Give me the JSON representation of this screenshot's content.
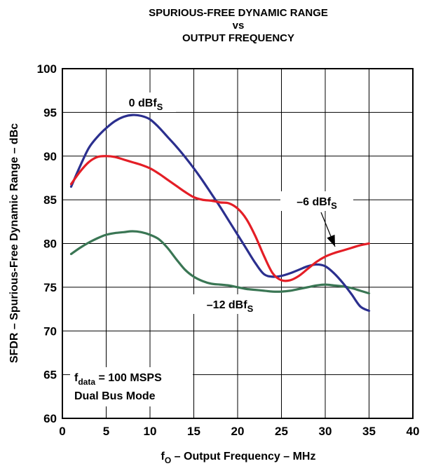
{
  "chart_data": {
    "type": "line",
    "title_lines": [
      "SPURIOUS-FREE DYNAMIC RANGE",
      "vs",
      "OUTPUT FREQUENCY"
    ],
    "xlabel": {
      "main": "f",
      "sub": "O",
      "rest": " – Output Frequency – MHz"
    },
    "ylabel": "SFDR – Spurious-Free Dynamic Range – dBc",
    "xlim": [
      0,
      40
    ],
    "ylim": [
      60,
      100
    ],
    "xticks": [
      0,
      5,
      10,
      15,
      20,
      25,
      30,
      35,
      40
    ],
    "yticks": [
      60,
      65,
      70,
      75,
      80,
      85,
      90,
      95,
      100
    ],
    "grid": true,
    "series": [
      {
        "name": "0 dBfS",
        "label": {
          "main": "0 dBf",
          "sub": "S"
        },
        "color": "#2b2f8e",
        "x": [
          1,
          2,
          3,
          4,
          5,
          6,
          7,
          8,
          9,
          10,
          11,
          12,
          13,
          14,
          15,
          16,
          17,
          18,
          19,
          20,
          21,
          22,
          23,
          24,
          25,
          26,
          27,
          28,
          29,
          30,
          31,
          32,
          33,
          34,
          35
        ],
        "y": [
          86.5,
          88.8,
          90.9,
          92.2,
          93.2,
          94.0,
          94.5,
          94.7,
          94.6,
          94.2,
          93.3,
          92.2,
          91.1,
          89.9,
          88.6,
          87.2,
          85.7,
          84.2,
          82.6,
          81.0,
          79.4,
          77.8,
          76.5,
          76.2,
          76.3,
          76.6,
          77.0,
          77.4,
          77.6,
          77.4,
          76.6,
          75.5,
          74.2,
          72.8,
          72.3
        ]
      },
      {
        "name": "–6 dBfS",
        "label": {
          "main": "–6 dBf",
          "sub": "S"
        },
        "color": "#e41e26",
        "x": [
          1,
          2,
          3,
          4,
          5,
          6,
          7,
          8,
          9,
          10,
          11,
          12,
          13,
          14,
          15,
          16,
          17,
          18,
          19,
          20,
          21,
          22,
          23,
          24,
          25,
          26,
          27,
          28,
          29,
          30,
          31,
          32,
          33,
          34,
          35
        ],
        "y": [
          86.8,
          88.2,
          89.3,
          89.9,
          90.0,
          89.9,
          89.6,
          89.3,
          89.0,
          88.6,
          88.0,
          87.3,
          86.6,
          85.9,
          85.3,
          85.0,
          84.9,
          84.7,
          84.6,
          84.0,
          82.8,
          80.9,
          78.6,
          76.6,
          75.8,
          75.8,
          76.3,
          77.1,
          77.9,
          78.5,
          78.9,
          79.2,
          79.5,
          79.8,
          80.0
        ]
      },
      {
        "name": "–12 dBfS",
        "label": {
          "main": "–12 dBf",
          "sub": "S"
        },
        "color": "#3a7654",
        "x": [
          1,
          2,
          3,
          4,
          5,
          6,
          7,
          8,
          9,
          10,
          11,
          12,
          13,
          14,
          15,
          16,
          17,
          18,
          19,
          20,
          21,
          22,
          23,
          24,
          25,
          26,
          27,
          28,
          29,
          30,
          31,
          32,
          33,
          34,
          35
        ],
        "y": [
          78.8,
          79.5,
          80.1,
          80.6,
          81.0,
          81.2,
          81.3,
          81.4,
          81.3,
          81.0,
          80.5,
          79.5,
          78.2,
          77.0,
          76.2,
          75.7,
          75.4,
          75.3,
          75.2,
          75.0,
          74.8,
          74.7,
          74.6,
          74.5,
          74.5,
          74.6,
          74.8,
          75.0,
          75.2,
          75.3,
          75.2,
          75.1,
          74.9,
          74.6,
          74.3
        ]
      }
    ],
    "annotation": {
      "line1": {
        "main": "f",
        "sub": "data",
        "rest": " = 100 MSPS"
      },
      "line2": "Dual Bus Mode"
    }
  }
}
